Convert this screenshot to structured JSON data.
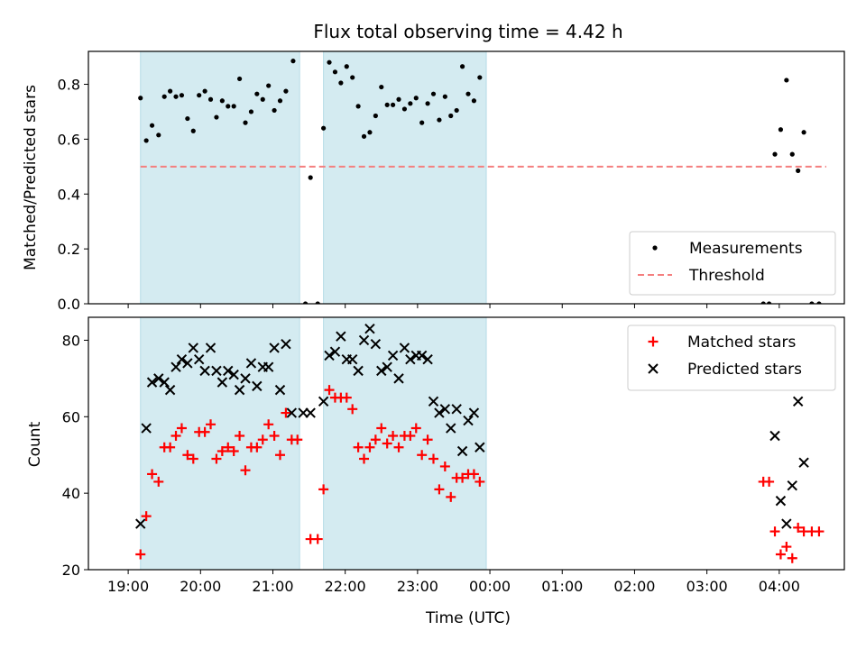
{
  "chart_data": [
    {
      "type": "scatter",
      "title": "Flux total observing time = 4.42 h",
      "xlabel": "",
      "ylabel": "Matched/Predicted stars",
      "xlim": [
        -0.55,
        9.9
      ],
      "ylim": [
        0.0,
        0.92
      ],
      "x_ticks": [
        {
          "v": 0,
          "label": "19:00"
        },
        {
          "v": 1,
          "label": "20:00"
        },
        {
          "v": 2,
          "label": "21:00"
        },
        {
          "v": 3,
          "label": "22:00"
        },
        {
          "v": 4,
          "label": "23:00"
        },
        {
          "v": 5,
          "label": "00:00"
        },
        {
          "v": 6,
          "label": "01:00"
        },
        {
          "v": 7,
          "label": "02:00"
        },
        {
          "v": 8,
          "label": "03:00"
        },
        {
          "v": 9,
          "label": "04:00"
        }
      ],
      "y_ticks": [
        {
          "v": 0.0,
          "label": "0.0"
        },
        {
          "v": 0.2,
          "label": "0.2"
        },
        {
          "v": 0.4,
          "label": "0.4"
        },
        {
          "v": 0.6,
          "label": "0.6"
        },
        {
          "v": 0.8,
          "label": "0.8"
        }
      ],
      "shaded_spans": [
        [
          0.17,
          2.37
        ],
        [
          2.7,
          4.95
        ]
      ],
      "shade_color": "#d4ebf1",
      "legend_position": "lower right",
      "threshold": {
        "name": "Threshold",
        "y": 0.5,
        "x": [
          0.17,
          9.65
        ],
        "color": "#f47f7f"
      },
      "series": [
        {
          "name": "Measurements",
          "marker": "dot",
          "color": "#000000",
          "points": [
            [
              0.17,
              0.75
            ],
            [
              0.25,
              0.595
            ],
            [
              0.33,
              0.65
            ],
            [
              0.42,
              0.615
            ],
            [
              0.5,
              0.755
            ],
            [
              0.58,
              0.775
            ],
            [
              0.66,
              0.755
            ],
            [
              0.74,
              0.76
            ],
            [
              0.82,
              0.675
            ],
            [
              0.9,
              0.63
            ],
            [
              0.98,
              0.76
            ],
            [
              1.06,
              0.775
            ],
            [
              1.14,
              0.745
            ],
            [
              1.22,
              0.68
            ],
            [
              1.3,
              0.74
            ],
            [
              1.38,
              0.72
            ],
            [
              1.46,
              0.72
            ],
            [
              1.54,
              0.82
            ],
            [
              1.62,
              0.66
            ],
            [
              1.7,
              0.7
            ],
            [
              1.78,
              0.765
            ],
            [
              1.86,
              0.745
            ],
            [
              1.94,
              0.795
            ],
            [
              2.02,
              0.705
            ],
            [
              2.1,
              0.74
            ],
            [
              2.18,
              0.775
            ],
            [
              2.28,
              0.885
            ],
            [
              2.45,
              0.0
            ],
            [
              2.52,
              0.46
            ],
            [
              2.62,
              0.0
            ],
            [
              2.7,
              0.64
            ],
            [
              2.78,
              0.88
            ],
            [
              2.86,
              0.845
            ],
            [
              2.94,
              0.805
            ],
            [
              3.02,
              0.865
            ],
            [
              3.1,
              0.825
            ],
            [
              3.18,
              0.72
            ],
            [
              3.26,
              0.61
            ],
            [
              3.34,
              0.625
            ],
            [
              3.42,
              0.685
            ],
            [
              3.5,
              0.79
            ],
            [
              3.58,
              0.725
            ],
            [
              3.66,
              0.725
            ],
            [
              3.74,
              0.745
            ],
            [
              3.82,
              0.71
            ],
            [
              3.9,
              0.73
            ],
            [
              3.98,
              0.75
            ],
            [
              4.06,
              0.66
            ],
            [
              4.14,
              0.73
            ],
            [
              4.22,
              0.765
            ],
            [
              4.3,
              0.67
            ],
            [
              4.38,
              0.755
            ],
            [
              4.46,
              0.685
            ],
            [
              4.54,
              0.705
            ],
            [
              4.62,
              0.865
            ],
            [
              4.7,
              0.765
            ],
            [
              4.78,
              0.74
            ],
            [
              4.86,
              0.825
            ],
            [
              8.78,
              0.0
            ],
            [
              8.86,
              0.0
            ],
            [
              8.94,
              0.545
            ],
            [
              9.02,
              0.635
            ],
            [
              9.1,
              0.815
            ],
            [
              9.18,
              0.545
            ],
            [
              9.26,
              0.485
            ],
            [
              9.34,
              0.625
            ],
            [
              9.45,
              0.0
            ],
            [
              9.55,
              0.0
            ]
          ]
        }
      ]
    },
    {
      "type": "scatter",
      "title": "",
      "xlabel": "Time (UTC)",
      "ylabel": "Count",
      "xlim": [
        -0.55,
        9.9
      ],
      "ylim": [
        20,
        86
      ],
      "x_ticks": [
        {
          "v": 0,
          "label": "19:00"
        },
        {
          "v": 1,
          "label": "20:00"
        },
        {
          "v": 2,
          "label": "21:00"
        },
        {
          "v": 3,
          "label": "22:00"
        },
        {
          "v": 4,
          "label": "23:00"
        },
        {
          "v": 5,
          "label": "00:00"
        },
        {
          "v": 6,
          "label": "01:00"
        },
        {
          "v": 7,
          "label": "02:00"
        },
        {
          "v": 8,
          "label": "03:00"
        },
        {
          "v": 9,
          "label": "04:00"
        }
      ],
      "y_ticks": [
        {
          "v": 20,
          "label": "20"
        },
        {
          "v": 40,
          "label": "40"
        },
        {
          "v": 60,
          "label": "60"
        },
        {
          "v": 80,
          "label": "80"
        }
      ],
      "shaded_spans": [
        [
          0.17,
          2.37
        ],
        [
          2.7,
          4.95
        ]
      ],
      "shade_color": "#d4ebf1",
      "legend_position": "upper right",
      "series": [
        {
          "name": "Matched stars",
          "marker": "plus",
          "color": "#ff0000",
          "points": [
            [
              0.17,
              24
            ],
            [
              0.25,
              34
            ],
            [
              0.33,
              45
            ],
            [
              0.42,
              43
            ],
            [
              0.5,
              52
            ],
            [
              0.58,
              52
            ],
            [
              0.66,
              55
            ],
            [
              0.74,
              57
            ],
            [
              0.82,
              50
            ],
            [
              0.9,
              49
            ],
            [
              0.98,
              56
            ],
            [
              1.06,
              56
            ],
            [
              1.14,
              58
            ],
            [
              1.22,
              49
            ],
            [
              1.3,
              51
            ],
            [
              1.38,
              52
            ],
            [
              1.46,
              51
            ],
            [
              1.54,
              55
            ],
            [
              1.62,
              46
            ],
            [
              1.7,
              52
            ],
            [
              1.78,
              52
            ],
            [
              1.86,
              54
            ],
            [
              1.94,
              58
            ],
            [
              2.02,
              55
            ],
            [
              2.1,
              50
            ],
            [
              2.18,
              61
            ],
            [
              2.26,
              54
            ],
            [
              2.34,
              54
            ],
            [
              2.52,
              28
            ],
            [
              2.62,
              28
            ],
            [
              2.7,
              41
            ],
            [
              2.78,
              67
            ],
            [
              2.86,
              65
            ],
            [
              2.94,
              65
            ],
            [
              3.02,
              65
            ],
            [
              3.1,
              62
            ],
            [
              3.18,
              52
            ],
            [
              3.26,
              49
            ],
            [
              3.34,
              52
            ],
            [
              3.42,
              54
            ],
            [
              3.5,
              57
            ],
            [
              3.58,
              53
            ],
            [
              3.66,
              55
            ],
            [
              3.74,
              52
            ],
            [
              3.82,
              55
            ],
            [
              3.9,
              55
            ],
            [
              3.98,
              57
            ],
            [
              4.06,
              50
            ],
            [
              4.14,
              54
            ],
            [
              4.22,
              49
            ],
            [
              4.3,
              41
            ],
            [
              4.38,
              47
            ],
            [
              4.46,
              39
            ],
            [
              4.54,
              44
            ],
            [
              4.62,
              44
            ],
            [
              4.7,
              45
            ],
            [
              4.78,
              45
            ],
            [
              4.86,
              43
            ],
            [
              8.78,
              43
            ],
            [
              8.86,
              43
            ],
            [
              8.94,
              30
            ],
            [
              9.02,
              24
            ],
            [
              9.1,
              26
            ],
            [
              9.18,
              23
            ],
            [
              9.26,
              31
            ],
            [
              9.34,
              30
            ],
            [
              9.45,
              30
            ],
            [
              9.55,
              30
            ]
          ]
        },
        {
          "name": "Predicted stars",
          "marker": "x",
          "color": "#000000",
          "points": [
            [
              0.17,
              32
            ],
            [
              0.25,
              57
            ],
            [
              0.33,
              69
            ],
            [
              0.42,
              70
            ],
            [
              0.5,
              69
            ],
            [
              0.58,
              67
            ],
            [
              0.66,
              73
            ],
            [
              0.74,
              75
            ],
            [
              0.82,
              74
            ],
            [
              0.9,
              78
            ],
            [
              0.98,
              75
            ],
            [
              1.06,
              72
            ],
            [
              1.14,
              78
            ],
            [
              1.22,
              72
            ],
            [
              1.3,
              69
            ],
            [
              1.38,
              72
            ],
            [
              1.46,
              71
            ],
            [
              1.54,
              67
            ],
            [
              1.62,
              70
            ],
            [
              1.7,
              74
            ],
            [
              1.78,
              68
            ],
            [
              1.86,
              73
            ],
            [
              1.94,
              73
            ],
            [
              2.02,
              78
            ],
            [
              2.1,
              67
            ],
            [
              2.18,
              79
            ],
            [
              2.26,
              61
            ],
            [
              2.42,
              61
            ],
            [
              2.52,
              61
            ],
            [
              2.7,
              64
            ],
            [
              2.78,
              76
            ],
            [
              2.86,
              77
            ],
            [
              2.94,
              81
            ],
            [
              3.02,
              75
            ],
            [
              3.1,
              75
            ],
            [
              3.18,
              72
            ],
            [
              3.26,
              80
            ],
            [
              3.34,
              83
            ],
            [
              3.42,
              79
            ],
            [
              3.5,
              72
            ],
            [
              3.58,
              73
            ],
            [
              3.66,
              76
            ],
            [
              3.74,
              70
            ],
            [
              3.82,
              78
            ],
            [
              3.9,
              75
            ],
            [
              3.98,
              76
            ],
            [
              4.06,
              76
            ],
            [
              4.14,
              75
            ],
            [
              4.22,
              64
            ],
            [
              4.3,
              61
            ],
            [
              4.38,
              62
            ],
            [
              4.46,
              57
            ],
            [
              4.54,
              62
            ],
            [
              4.62,
              51
            ],
            [
              4.7,
              59
            ],
            [
              4.78,
              61
            ],
            [
              4.86,
              52
            ],
            [
              8.94,
              55
            ],
            [
              9.02,
              38
            ],
            [
              9.1,
              32
            ],
            [
              9.18,
              42
            ],
            [
              9.26,
              64
            ],
            [
              9.34,
              48
            ]
          ]
        }
      ]
    }
  ]
}
